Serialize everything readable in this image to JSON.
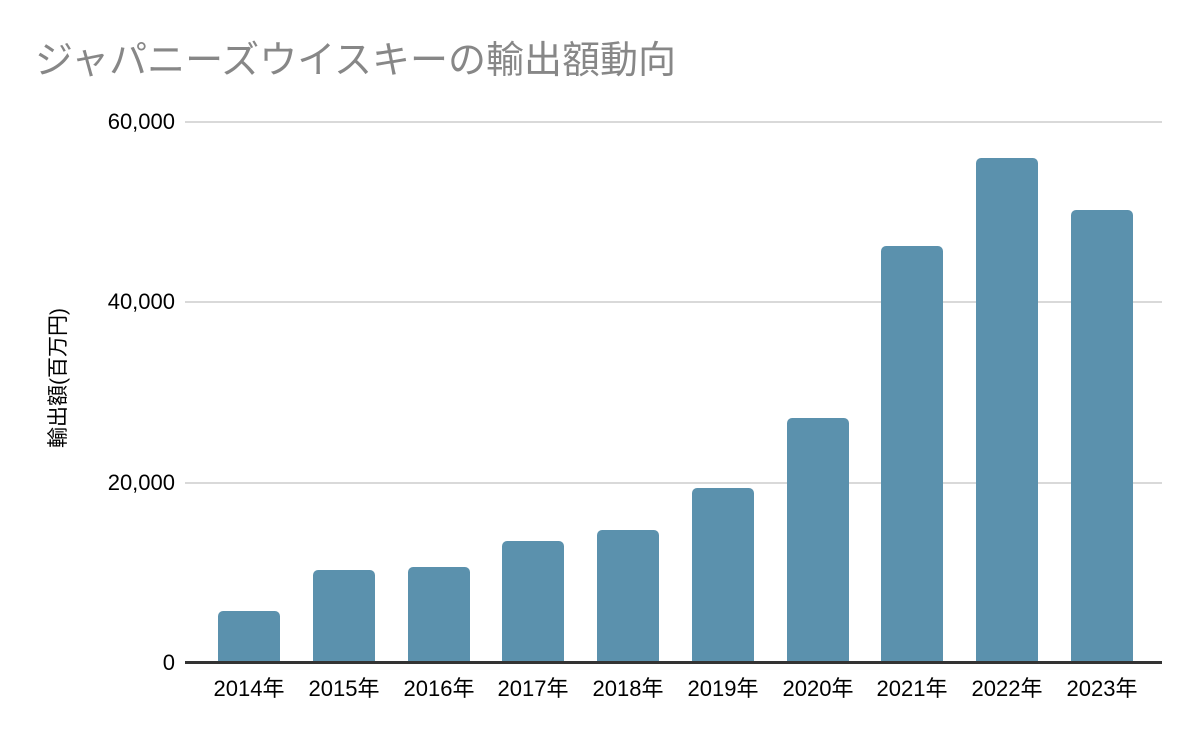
{
  "header": {
    "title": "ジャパニーズウイスキーの輸出額動向"
  },
  "chart_data": {
    "type": "bar",
    "title": "ジャパニーズウイスキーの輸出額動向",
    "categories": [
      "2014年",
      "2015年",
      "2016年",
      "2017年",
      "2018年",
      "2019年",
      "2020年",
      "2021年",
      "2022年",
      "2023年"
    ],
    "values": [
      5800,
      10300,
      10600,
      13500,
      14800,
      19400,
      27200,
      46200,
      56000,
      50200
    ],
    "xlabel": "",
    "ylabel": "輸出額(百万円)",
    "ylim": [
      0,
      60000
    ],
    "yticks": [
      0,
      20000,
      40000,
      60000
    ],
    "ytick_labels": [
      "0",
      "20,000",
      "40,000",
      "60,000"
    ],
    "grid": "horizontal-only",
    "legend": "none",
    "colors": {
      "bar": "#5b91ad",
      "gridline": "#d9d9d9",
      "axis_line": "#333333",
      "tick_label": "#000000",
      "title": "#878787",
      "background": "#ffffff"
    }
  }
}
